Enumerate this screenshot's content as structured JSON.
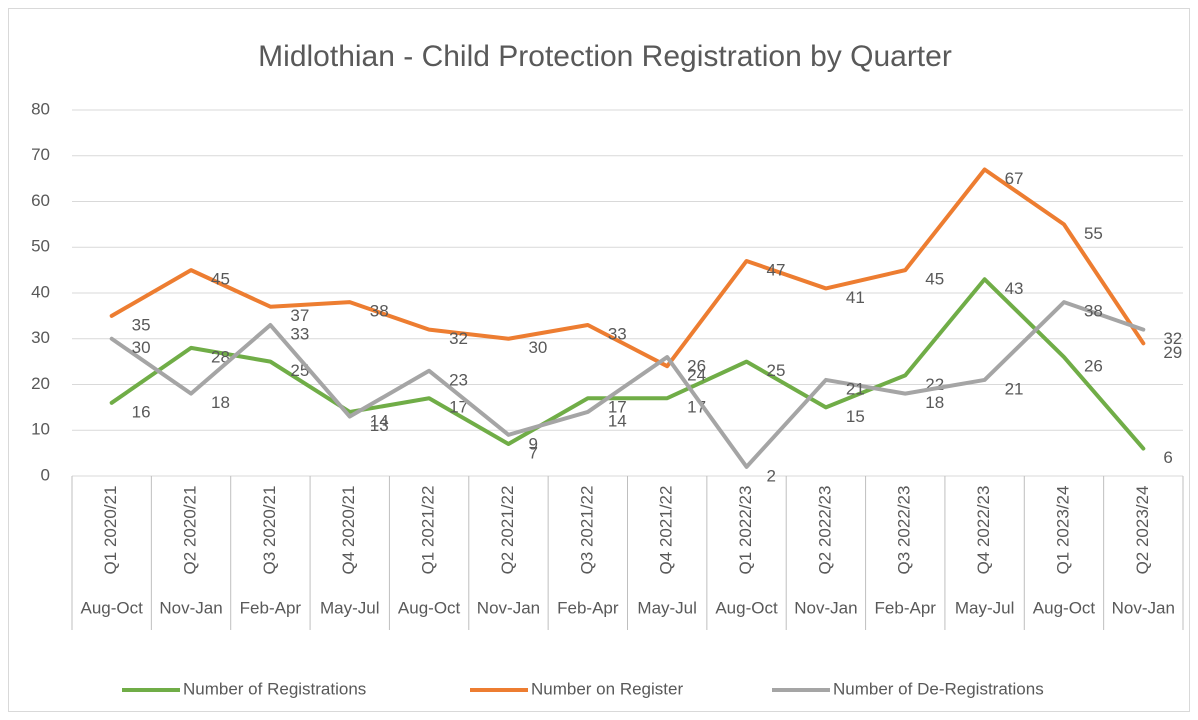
{
  "chart_data": {
    "type": "line",
    "title": "Midlothian - Child Protection Registration by Quarter",
    "categories": [
      [
        "Q1 2020/21",
        "Aug-Oct"
      ],
      [
        "Q2 2020/21",
        "Nov-Jan"
      ],
      [
        "Q3 2020/21",
        "Feb-Apr"
      ],
      [
        "Q4 2020/21",
        "May-Jul"
      ],
      [
        "Q1 2021/22",
        "Aug-Oct"
      ],
      [
        "Q2 2021/22",
        "Nov-Jan"
      ],
      [
        "Q3 2021/22",
        "Feb-Apr"
      ],
      [
        "Q4 2021/22",
        "May-Jul"
      ],
      [
        "Q1 2022/23",
        "Aug-Oct"
      ],
      [
        "Q2 2022/23",
        "Nov-Jan"
      ],
      [
        "Q3 2022/23",
        "Feb-Apr"
      ],
      [
        "Q4 2022/23",
        "May-Jul"
      ],
      [
        "Q1 2023/24",
        "Aug-Oct"
      ],
      [
        "Q2 2023/24",
        "Nov-Jan"
      ]
    ],
    "series": [
      {
        "name": "Number of Registrations",
        "color": "#70ad47",
        "values": [
          16,
          28,
          25,
          14,
          17,
          7,
          17,
          17,
          25,
          15,
          22,
          43,
          26,
          6
        ]
      },
      {
        "name": "Number on Register",
        "color": "#ed7d31",
        "values": [
          35,
          45,
          37,
          38,
          32,
          30,
          33,
          24,
          47,
          41,
          45,
          67,
          55,
          29
        ]
      },
      {
        "name": "Number of De-Registrations",
        "color": "#a5a5a5",
        "values": [
          30,
          18,
          33,
          13,
          23,
          9,
          14,
          26,
          2,
          21,
          18,
          21,
          38,
          32
        ]
      }
    ],
    "ylim": [
      0,
      80
    ],
    "yticks": [
      0,
      10,
      20,
      30,
      40,
      50,
      60,
      70,
      80
    ],
    "grid": true,
    "legend": "bottom"
  }
}
